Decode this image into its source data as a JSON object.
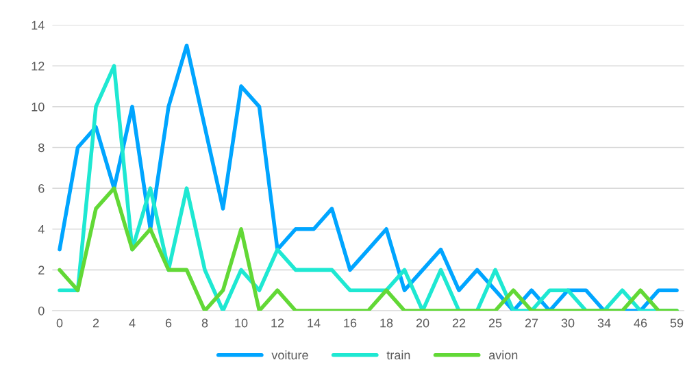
{
  "chart_data": {
    "type": "line",
    "categories": [
      "0",
      null,
      "2",
      null,
      "4",
      null,
      "6",
      null,
      "8",
      null,
      "10",
      null,
      "12",
      null,
      "14",
      null,
      "16",
      null,
      "18",
      null,
      "20",
      null,
      "22",
      null,
      "25",
      null,
      "27",
      null,
      "30",
      null,
      "34",
      null,
      "46",
      null,
      "59"
    ],
    "series": [
      {
        "name": "voiture",
        "color": "#00a5ff",
        "values": [
          3,
          8,
          9,
          6,
          10,
          4,
          10,
          13,
          9,
          5,
          11,
          10,
          3,
          4,
          4,
          5,
          2,
          3,
          4,
          1,
          2,
          3,
          1,
          2,
          1,
          0,
          1,
          0,
          1,
          1,
          0,
          0,
          0,
          1,
          1
        ]
      },
      {
        "name": "train",
        "color": "#1ee8d2",
        "values": [
          1,
          1,
          10,
          12,
          3,
          6,
          2,
          6,
          2,
          0,
          2,
          1,
          3,
          2,
          2,
          2,
          1,
          1,
          1,
          2,
          0,
          2,
          0,
          0,
          2,
          0,
          0,
          1,
          1,
          0,
          0,
          1,
          0,
          0,
          0
        ]
      },
      {
        "name": "avion",
        "color": "#62d836",
        "values": [
          2,
          1,
          5,
          6,
          3,
          4,
          2,
          2,
          0,
          1,
          4,
          0,
          1,
          0,
          0,
          0,
          0,
          0,
          1,
          0,
          0,
          0,
          0,
          0,
          0,
          1,
          0,
          0,
          0,
          0,
          0,
          0,
          1,
          0,
          0
        ]
      }
    ],
    "ylim": [
      0,
      14
    ],
    "yticks": [
      0,
      2,
      4,
      6,
      8,
      10,
      12,
      14
    ],
    "grid": "y",
    "legend": "bottom",
    "marker": "none",
    "line_style": "solid"
  }
}
